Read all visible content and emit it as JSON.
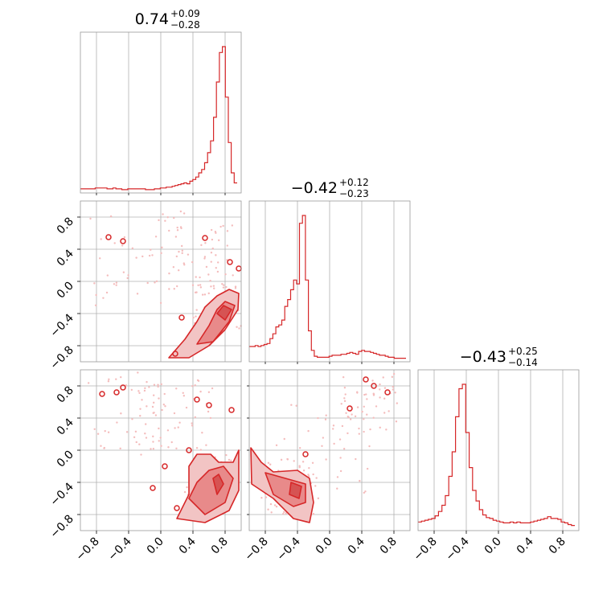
{
  "colors": {
    "main": "#d62728",
    "fill_light": "#f2c4c4",
    "fill_mid": "#e88a8a",
    "fill_dark": "#d65353",
    "grid": "#b0b0b0",
    "points": "#f4bcbc"
  },
  "chart_data": {
    "type": "corner",
    "grid": true,
    "axis_range": [
      -1.0,
      1.0
    ],
    "ticks": [
      -0.8,
      -0.4,
      0.0,
      0.4,
      0.8
    ],
    "tick_labels": [
      "−0.8",
      "−0.4",
      "0.0",
      "0.4",
      "0.8"
    ],
    "parameters": [
      {
        "median": "0.74",
        "plus": "+0.09",
        "minus": "−0.28"
      },
      {
        "median": "−0.42",
        "plus": "+0.12",
        "minus": "−0.23"
      },
      {
        "median": "−0.43",
        "plus": "+0.25",
        "minus": "−0.14"
      }
    ],
    "histograms": [
      {
        "bin_edges": [
          -1.0,
          0.95
        ],
        "counts": [
          3,
          3,
          3,
          3,
          3,
          4,
          4,
          4,
          4,
          3,
          3,
          4,
          3,
          3,
          2,
          2,
          3,
          3,
          3,
          3,
          3,
          3,
          2,
          2,
          2,
          3,
          3,
          4,
          4,
          5,
          5,
          6,
          7,
          8,
          9,
          10,
          9,
          12,
          14,
          17,
          22,
          26,
          34,
          46,
          60,
          88,
          130,
          165,
          172,
          112,
          58,
          22,
          10
        ]
      },
      {
        "bin_edges": [
          -1.0,
          0.95
        ],
        "counts": [
          14,
          14,
          15,
          14,
          15,
          16,
          17,
          22,
          27,
          34,
          36,
          41,
          55,
          62,
          72,
          82,
          78,
          140,
          148,
          82,
          30,
          10,
          4,
          3,
          3,
          3,
          3,
          4,
          5,
          5,
          5,
          6,
          6,
          7,
          8,
          7,
          6,
          9,
          10,
          9,
          9,
          8,
          7,
          6,
          5,
          5,
          4,
          3,
          3,
          2,
          2,
          2,
          2
        ]
      },
      {
        "bin_edges": [
          -1.0,
          0.95
        ],
        "counts": [
          8,
          9,
          10,
          11,
          12,
          15,
          20,
          27,
          38,
          60,
          88,
          128,
          160,
          165,
          110,
          70,
          44,
          32,
          22,
          16,
          13,
          12,
          10,
          9,
          8,
          7,
          7,
          8,
          7,
          8,
          7,
          7,
          7,
          8,
          9,
          10,
          11,
          12,
          14,
          12,
          12,
          11,
          8,
          7,
          5,
          4
        ]
      }
    ],
    "contours": [
      {
        "panel": "x1_vs_x0",
        "levels": [
          [
            [
              0.1,
              -0.95
            ],
            [
              0.3,
              -0.72
            ],
            [
              0.45,
              -0.5
            ],
            [
              0.55,
              -0.32
            ],
            [
              0.7,
              -0.18
            ],
            [
              0.85,
              -0.1
            ],
            [
              0.97,
              -0.15
            ],
            [
              0.96,
              -0.35
            ],
            [
              0.8,
              -0.6
            ],
            [
              0.6,
              -0.8
            ],
            [
              0.35,
              -0.95
            ]
          ],
          [
            [
              0.45,
              -0.78
            ],
            [
              0.6,
              -0.55
            ],
            [
              0.7,
              -0.35
            ],
            [
              0.8,
              -0.25
            ],
            [
              0.92,
              -0.3
            ],
            [
              0.85,
              -0.5
            ],
            [
              0.65,
              -0.75
            ]
          ],
          [
            [
              0.7,
              -0.4
            ],
            [
              0.78,
              -0.3
            ],
            [
              0.88,
              -0.35
            ],
            [
              0.8,
              -0.48
            ]
          ]
        ],
        "islands": [
          [
            -0.65,
            0.55
          ],
          [
            -0.47,
            0.5
          ],
          [
            0.55,
            0.54
          ],
          [
            0.86,
            0.24
          ],
          [
            0.97,
            0.16
          ],
          [
            0.26,
            -0.45
          ],
          [
            0.18,
            -0.9
          ]
        ]
      },
      {
        "panel": "x2_vs_x0",
        "levels": [
          [
            [
              0.2,
              -0.85
            ],
            [
              0.35,
              -0.55
            ],
            [
              0.35,
              -0.2
            ],
            [
              0.45,
              -0.05
            ],
            [
              0.62,
              -0.05
            ],
            [
              0.72,
              -0.15
            ],
            [
              0.9,
              -0.15
            ],
            [
              0.97,
              0.0
            ],
            [
              0.97,
              -0.5
            ],
            [
              0.85,
              -0.75
            ],
            [
              0.55,
              -0.9
            ]
          ],
          [
            [
              0.35,
              -0.6
            ],
            [
              0.45,
              -0.4
            ],
            [
              0.6,
              -0.25
            ],
            [
              0.78,
              -0.2
            ],
            [
              0.9,
              -0.35
            ],
            [
              0.8,
              -0.65
            ],
            [
              0.55,
              -0.8
            ]
          ],
          [
            [
              0.65,
              -0.35
            ],
            [
              0.72,
              -0.3
            ],
            [
              0.78,
              -0.42
            ],
            [
              0.7,
              -0.55
            ]
          ]
        ],
        "islands": [
          [
            -0.73,
            0.7
          ],
          [
            -0.55,
            0.72
          ],
          [
            -0.47,
            0.78
          ],
          [
            0.45,
            0.63
          ],
          [
            0.6,
            0.56
          ],
          [
            0.88,
            0.5
          ],
          [
            0.05,
            -0.2
          ],
          [
            -0.1,
            -0.47
          ],
          [
            0.35,
            -0.0
          ],
          [
            0.2,
            -0.72
          ]
        ]
      },
      {
        "panel": "x2_vs_x1",
        "levels": [
          [
            [
              -0.98,
              0.03
            ],
            [
              -0.85,
              -0.15
            ],
            [
              -0.7,
              -0.27
            ],
            [
              -0.4,
              -0.25
            ],
            [
              -0.25,
              -0.35
            ],
            [
              -0.2,
              -0.65
            ],
            [
              -0.25,
              -0.9
            ],
            [
              -0.45,
              -0.85
            ],
            [
              -0.7,
              -0.6
            ],
            [
              -0.97,
              -0.42
            ]
          ],
          [
            [
              -0.8,
              -0.28
            ],
            [
              -0.55,
              -0.35
            ],
            [
              -0.3,
              -0.42
            ],
            [
              -0.3,
              -0.65
            ],
            [
              -0.45,
              -0.7
            ],
            [
              -0.7,
              -0.55
            ]
          ],
          [
            [
              -0.48,
              -0.4
            ],
            [
              -0.35,
              -0.45
            ],
            [
              -0.38,
              -0.6
            ],
            [
              -0.5,
              -0.55
            ]
          ]
        ],
        "islands": [
          [
            0.45,
            0.88
          ],
          [
            0.55,
            0.8
          ],
          [
            0.72,
            0.72
          ],
          [
            0.25,
            0.52
          ],
          [
            -0.3,
            -0.05
          ]
        ]
      }
    ]
  }
}
